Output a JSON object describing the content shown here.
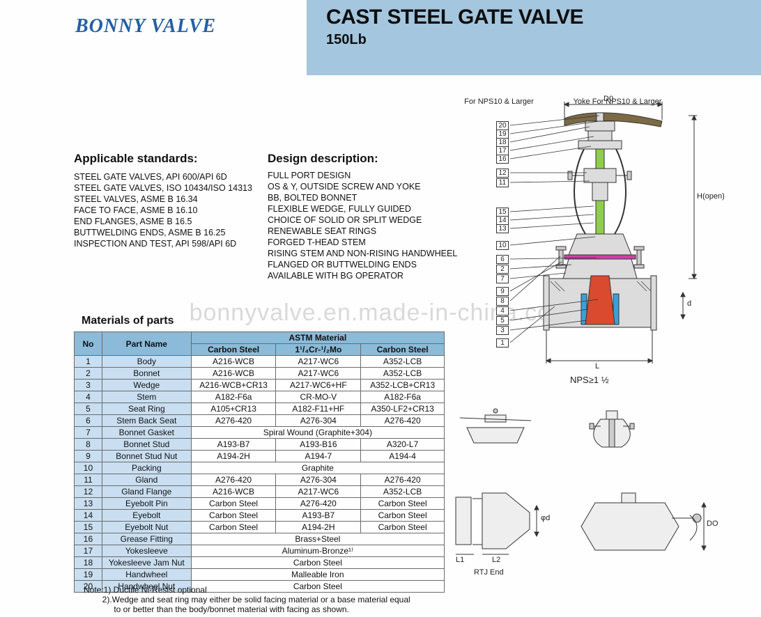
{
  "brand": "BONNY VALVE",
  "title_main": "CAST STEEL GATE VALVE",
  "title_sub": "150Lb",
  "watermark": "bonnyvalve.en.made-in-china.com",
  "standards_title": "Applicable standards:",
  "standards_items": [
    "STEEL GATE VALVES, API 600/API 6D",
    "STEEL GATE VALVES, ISO 10434/ISO 14313",
    "STEEL VALVES, ASME B 16.34",
    "FACE TO FACE, ASME B 16.10",
    "END FLANGES, ASME B 16.5",
    "BUTTWELDING ENDS, ASME B 16.25",
    "INSPECTION AND TEST, API 598/API 6D"
  ],
  "design_title": "Design description:",
  "design_items": [
    "FULL PORT DESIGN",
    "OS & Y, OUTSIDE SCREW AND YOKE",
    "BB, BOLTED BONNET",
    "FLEXIBLE WEDGE, FULLY GUIDED",
    "CHOICE OF SOLID OR SPLIT WEDGE",
    "RENEWABLE SEAT RINGS",
    "FORGED T-HEAD STEM",
    "RISING STEM AND NON-RISING HANDWHEEL",
    "FLANGED OR BUTTWELDING ENDS",
    "AVAILABLE WITH BG OPERATOR"
  ],
  "materials_title": "Materials of parts",
  "table_header": {
    "no": "No",
    "part": "Part Name",
    "astm": "ASTM Material",
    "c1": "Carbon Steel",
    "c2": "1¹/₄Cr-¹/₂Mo",
    "c3": "Carbon Steel"
  },
  "table_rows": [
    {
      "no": "1",
      "part": "Body",
      "c1": "A216-WCB",
      "c2": "A217-WC6",
      "c3": "A352-LCB"
    },
    {
      "no": "2",
      "part": "Bonnet",
      "c1": "A216-WCB",
      "c2": "A217-WC6",
      "c3": "A352-LCB"
    },
    {
      "no": "3",
      "part": "Wedge",
      "c1": "A216-WCB+CR13",
      "c2": "A217-WC6+HF",
      "c3": "A352-LCB+CR13"
    },
    {
      "no": "4",
      "part": "Stem",
      "c1": "A182-F6a",
      "c2": "CR-MO-V",
      "c3": "A182-F6a"
    },
    {
      "no": "5",
      "part": "Seat Ring",
      "c1": "A105+CR13",
      "c2": "A182-F11+HF",
      "c3": "A350-LF2+CR13"
    },
    {
      "no": "6",
      "part": "Stem Back Seat",
      "c1": "A276-420",
      "c2": "A276-304",
      "c3": "A276-420"
    },
    {
      "no": "7",
      "part": "Bonnet Gasket",
      "span": "Spiral Wound (Graphite+304)"
    },
    {
      "no": "8",
      "part": "Bonnet Stud",
      "c1": "A193-B7",
      "c2": "A193-B16",
      "c3": "A320-L7"
    },
    {
      "no": "9",
      "part": "Bonnet Stud Nut",
      "c1": "A194-2H",
      "c2": "A194-7",
      "c3": "A194-4"
    },
    {
      "no": "10",
      "part": "Packing",
      "span": "Graphite"
    },
    {
      "no": "11",
      "part": "Gland",
      "c1": "A276-420",
      "c2": "A276-304",
      "c3": "A276-420"
    },
    {
      "no": "12",
      "part": "Gland Flange",
      "c1": "A216-WCB",
      "c2": "A217-WC6",
      "c3": "A352-LCB"
    },
    {
      "no": "13",
      "part": "Eyebolt Pin",
      "c1": "Carbon Steel",
      "c2": "A276-420",
      "c3": "Carbon Steel"
    },
    {
      "no": "14",
      "part": "Eyebolt",
      "c1": "Carbon Steel",
      "c2": "A193-B7",
      "c3": "Carbon Steel"
    },
    {
      "no": "15",
      "part": "Eyebolt Nut",
      "c1": "Carbon Steel",
      "c2": "A194-2H",
      "c3": "Carbon Steel"
    },
    {
      "no": "16",
      "part": "Grease Fitting",
      "span": "Brass+Steel"
    },
    {
      "no": "17",
      "part": "Yokesleeve",
      "span": "Aluminum-Bronze¹⁾"
    },
    {
      "no": "18",
      "part": "Yokesleeve Jam Nut",
      "span": "Carbon Steel"
    },
    {
      "no": "19",
      "part": "Handwheel",
      "span": "Malleable Iron"
    },
    {
      "no": "20",
      "part": "Handwheel Nut",
      "span": "Carbon Steel"
    }
  ],
  "notes": [
    "Note:1).Ductile Ni-Resist optional",
    "        2).Wedge and seat ring may either be solid facing material or a base material equal",
    "             to or better than the body/bonnet material with facing as shown."
  ],
  "diagram": {
    "callouts_left": [
      "20",
      "19",
      "18",
      "17",
      "16",
      "12",
      "11",
      "15",
      "14",
      "13",
      "10",
      "6",
      "2",
      "7",
      "9",
      "8",
      "4",
      "5",
      "3",
      "1"
    ],
    "d0": "D0",
    "hopen": "H(open)",
    "L": "L",
    "d": "d",
    "nps": "NPS≥1 ½",
    "sub1": "For NPS10 & Larger",
    "sub2": "Yoke For NPS10 & Larger",
    "rtj": "RTJ End",
    "L1": "L1",
    "L2": "L2",
    "phid": "φd",
    "DO": "DO",
    "colors": {
      "outline": "#3a3a3a",
      "stem": "#8fce4a",
      "handwheel": "#7c6a45",
      "gasket": "#d03faa",
      "seat": "#3aa0d8",
      "wedge": "#d94a2f",
      "body_fill": "#dcdcdc"
    }
  }
}
